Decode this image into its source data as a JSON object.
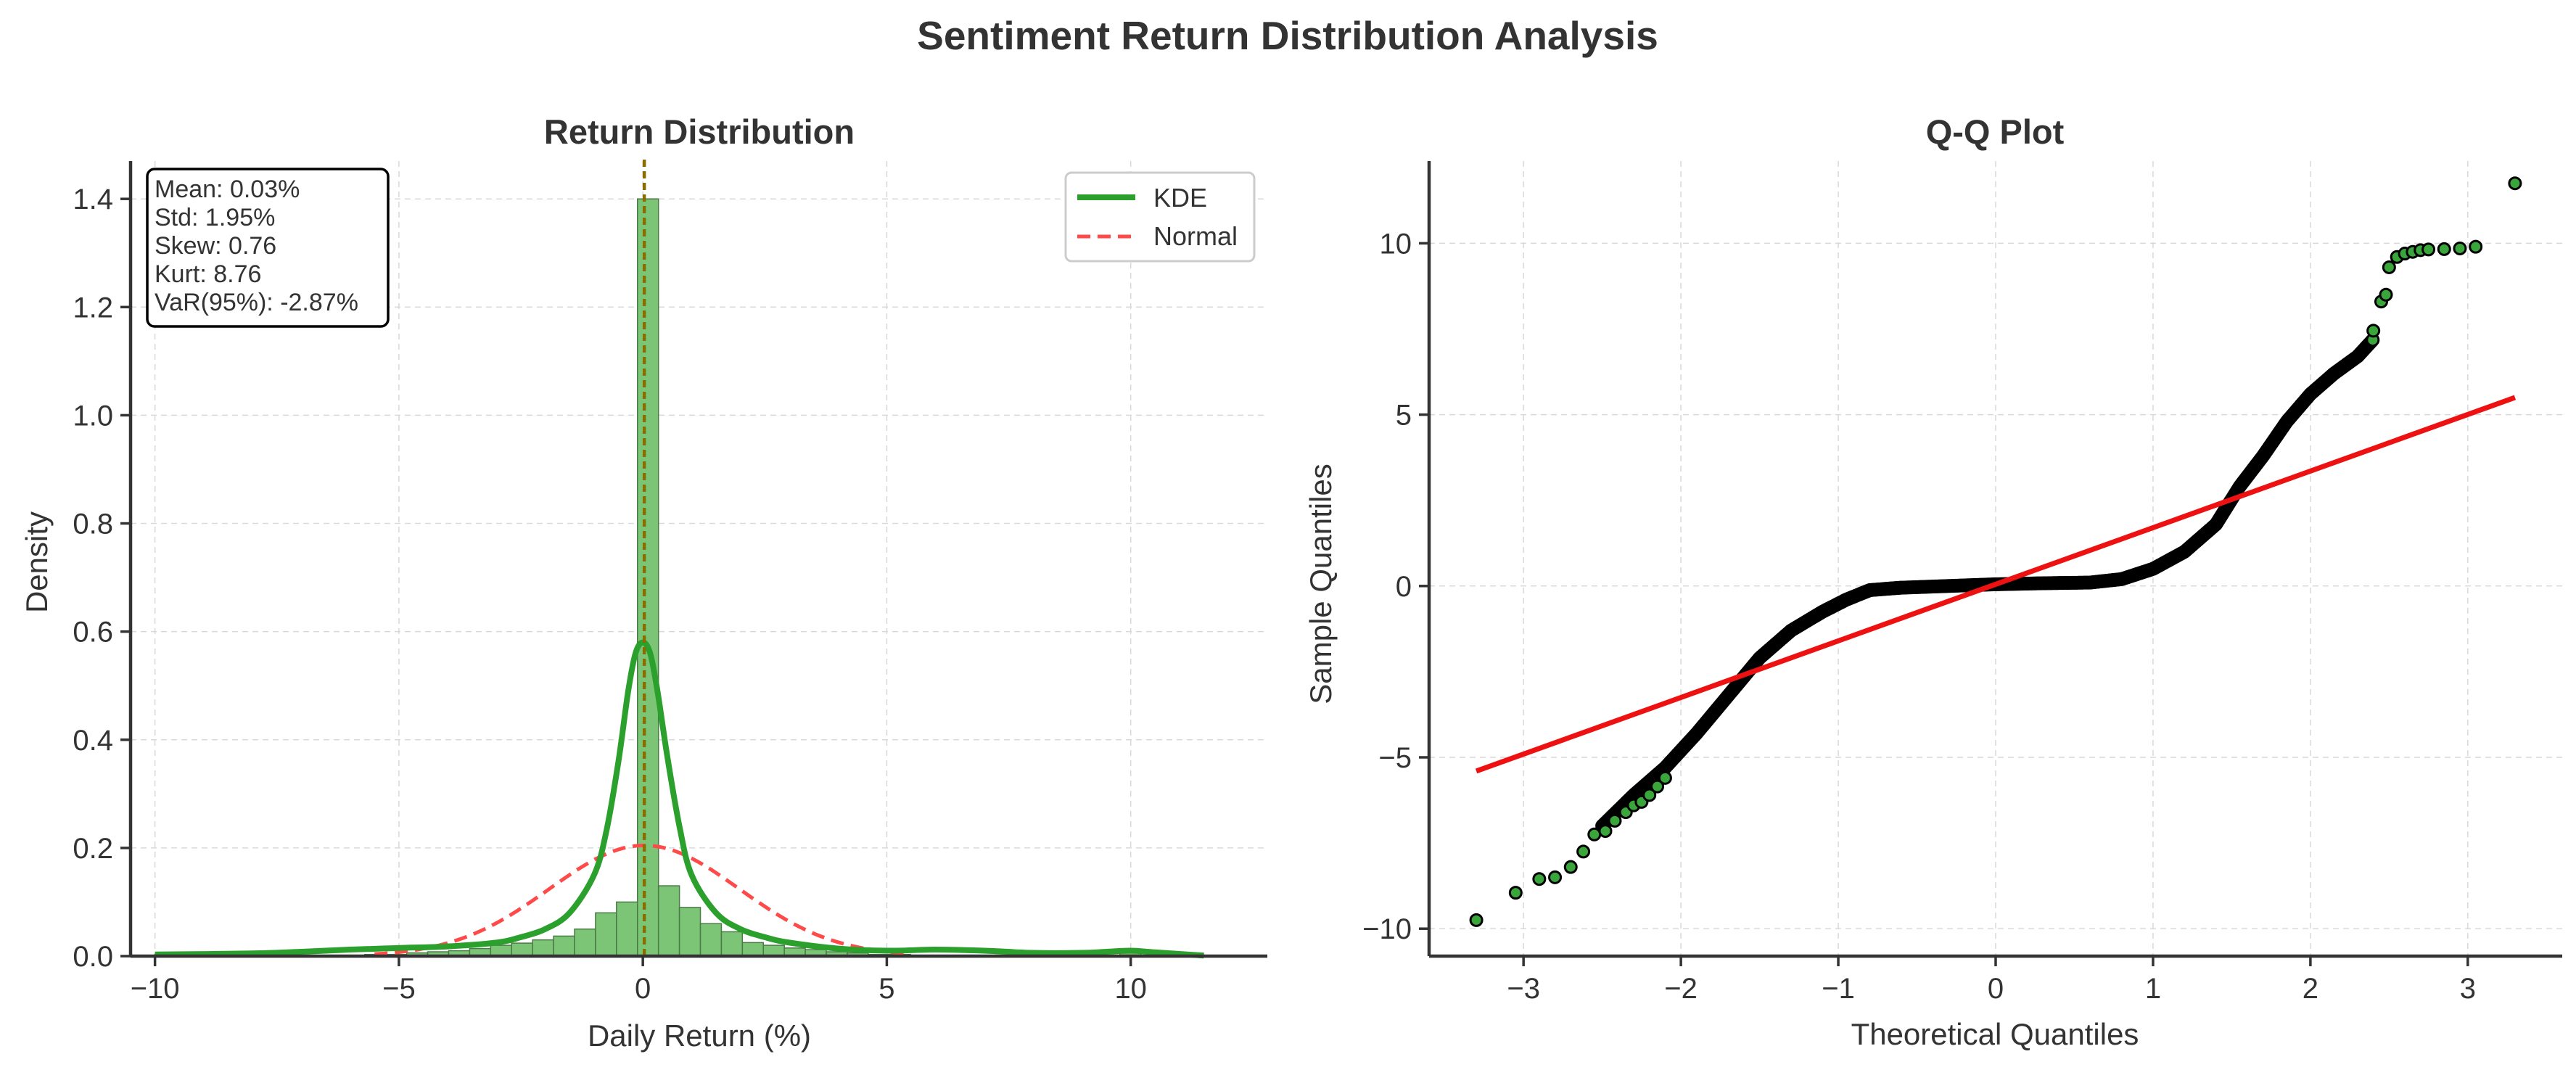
{
  "figure": {
    "title": "Sentiment Return Distribution Analysis"
  },
  "colors": {
    "hist_fill": "#7cc576",
    "hist_edge": "#4a7a45",
    "kde": "#2ca02c",
    "normal": "#ff4a4a",
    "mean_line": "#8a6d00",
    "qq_point": "#3aa53a",
    "qq_point_edge": "#000000",
    "qq_ref": "#ee1111"
  },
  "chart_data": [
    {
      "type": "bar",
      "subtype": "histogram_with_kde",
      "title": "Return Distribution",
      "xlabel": "Daily Return (%)",
      "ylabel": "Density",
      "xlim": [
        -10.5,
        12.8
      ],
      "ylim": [
        0,
        1.47
      ],
      "xticks": [
        -10,
        -5,
        0,
        5,
        10
      ],
      "yticks": [
        0.0,
        0.2,
        0.4,
        0.6,
        0.8,
        1.0,
        1.2,
        1.4
      ],
      "grid": true,
      "legend_position": "top-right",
      "legend": [
        "KDE",
        "Normal"
      ],
      "mean_line_x": 0.03,
      "bins": {
        "edges": [
          -10.0,
          -9.57,
          -9.14,
          -8.71,
          -8.28,
          -7.85,
          -7.42,
          -6.99,
          -6.56,
          -6.13,
          -5.7,
          -5.27,
          -4.84,
          -4.41,
          -3.98,
          -3.55,
          -3.12,
          -2.69,
          -2.26,
          -1.83,
          -1.4,
          -0.97,
          -0.54,
          -0.11,
          0.32,
          0.75,
          1.18,
          1.61,
          2.04,
          2.47,
          2.9,
          3.33,
          3.76,
          4.19,
          4.62,
          5.05,
          5.48,
          5.91,
          6.34,
          6.77,
          7.2,
          7.63,
          8.06,
          8.49,
          8.92,
          9.35,
          9.78,
          10.21,
          10.64,
          11.07,
          11.5,
          11.93
        ],
        "densities": [
          0.003,
          0,
          0,
          0,
          0,
          0,
          0,
          0,
          0,
          0,
          0.003,
          0.003,
          0.006,
          0.008,
          0.01,
          0.014,
          0.02,
          0.024,
          0.03,
          0.037,
          0.05,
          0.08,
          0.1,
          1.4,
          0.13,
          0.09,
          0.06,
          0.045,
          0.025,
          0.02,
          0.015,
          0.012,
          0.008,
          0.006,
          0.003,
          0.003,
          0,
          0,
          0,
          0,
          0,
          0,
          0,
          0,
          0,
          0,
          0.012,
          0,
          0,
          0,
          0
        ]
      },
      "kde": {
        "x": [
          -10,
          -8,
          -7,
          -6,
          -5,
          -4,
          -3,
          -2.5,
          -2,
          -1.5,
          -1,
          -0.75,
          -0.5,
          -0.3,
          -0.15,
          0,
          0.15,
          0.3,
          0.5,
          0.75,
          1,
          1.5,
          2,
          2.5,
          3,
          4,
          5,
          6,
          7,
          8,
          9,
          9.5,
          10,
          10.5,
          11.5
        ],
        "y": [
          0.003,
          0.005,
          0.008,
          0.012,
          0.015,
          0.018,
          0.025,
          0.035,
          0.05,
          0.08,
          0.15,
          0.23,
          0.36,
          0.49,
          0.56,
          0.58,
          0.56,
          0.49,
          0.37,
          0.24,
          0.15,
          0.08,
          0.05,
          0.035,
          0.025,
          0.014,
          0.01,
          0.012,
          0.01,
          0.006,
          0.006,
          0.008,
          0.01,
          0.007,
          0.001
        ]
      },
      "normal": {
        "mean": 0.03,
        "std": 1.95,
        "x_range": [
          -5.5,
          5.5
        ]
      },
      "annotation": [
        "Mean: 0.03%",
        "Std: 1.95%",
        "Skew: 0.76",
        "Kurt: 8.76",
        "VaR(95%): -2.87%"
      ]
    },
    {
      "type": "scatter",
      "subtype": "qq_plot",
      "title": "Q-Q Plot",
      "xlabel": "Theoretical Quantiles",
      "ylabel": "Sample Quantiles",
      "xlim": [
        -3.6,
        3.6
      ],
      "ylim": [
        -10.8,
        12.4
      ],
      "xticks": [
        -3,
        -2,
        -1,
        0,
        1,
        2,
        3
      ],
      "yticks": [
        -10,
        -5,
        0,
        5,
        10
      ],
      "grid": true,
      "reference_line": {
        "x": [
          -3.3,
          3.3
        ],
        "y": [
          -5.4,
          5.5
        ]
      },
      "curve_points": [
        [
          -2.5,
          -7.0
        ],
        [
          -2.3,
          -6.1
        ],
        [
          -2.1,
          -5.3
        ],
        [
          -1.9,
          -4.3
        ],
        [
          -1.7,
          -3.2
        ],
        [
          -1.5,
          -2.1
        ],
        [
          -1.3,
          -1.3
        ],
        [
          -1.1,
          -0.75
        ],
        [
          -0.95,
          -0.4
        ],
        [
          -0.8,
          -0.12
        ],
        [
          -0.6,
          -0.05
        ],
        [
          -0.3,
          0.0
        ],
        [
          0.0,
          0.05
        ],
        [
          0.3,
          0.08
        ],
        [
          0.6,
          0.1
        ],
        [
          0.8,
          0.2
        ],
        [
          1.0,
          0.5
        ],
        [
          1.2,
          1.0
        ],
        [
          1.4,
          1.8
        ],
        [
          1.55,
          2.9
        ],
        [
          1.7,
          3.8
        ],
        [
          1.85,
          4.8
        ],
        [
          2.0,
          5.6
        ],
        [
          2.15,
          6.2
        ],
        [
          2.3,
          6.7
        ],
        [
          2.4,
          7.2
        ]
      ],
      "tail_points": [
        [
          -3.3,
          -9.75
        ],
        [
          -3.05,
          -8.95
        ],
        [
          -2.9,
          -8.55
        ],
        [
          -2.8,
          -8.5
        ],
        [
          -2.7,
          -8.2
        ],
        [
          -2.62,
          -7.75
        ],
        [
          -2.55,
          -7.25
        ],
        [
          -2.48,
          -7.15
        ],
        [
          -2.42,
          -6.85
        ],
        [
          -2.35,
          -6.6
        ],
        [
          -2.3,
          -6.4
        ],
        [
          -2.25,
          -6.3
        ],
        [
          -2.2,
          -6.1
        ],
        [
          -2.15,
          -5.85
        ],
        [
          -2.1,
          -5.6
        ],
        [
          2.4,
          7.45
        ],
        [
          2.45,
          8.3
        ],
        [
          2.48,
          8.5
        ],
        [
          2.5,
          9.3
        ],
        [
          2.55,
          9.6
        ],
        [
          2.6,
          9.7
        ],
        [
          2.65,
          9.75
        ],
        [
          2.7,
          9.8
        ],
        [
          2.75,
          9.82
        ],
        [
          2.85,
          9.83
        ],
        [
          2.95,
          9.85
        ],
        [
          3.05,
          9.9
        ],
        [
          3.3,
          11.75
        ]
      ]
    }
  ]
}
